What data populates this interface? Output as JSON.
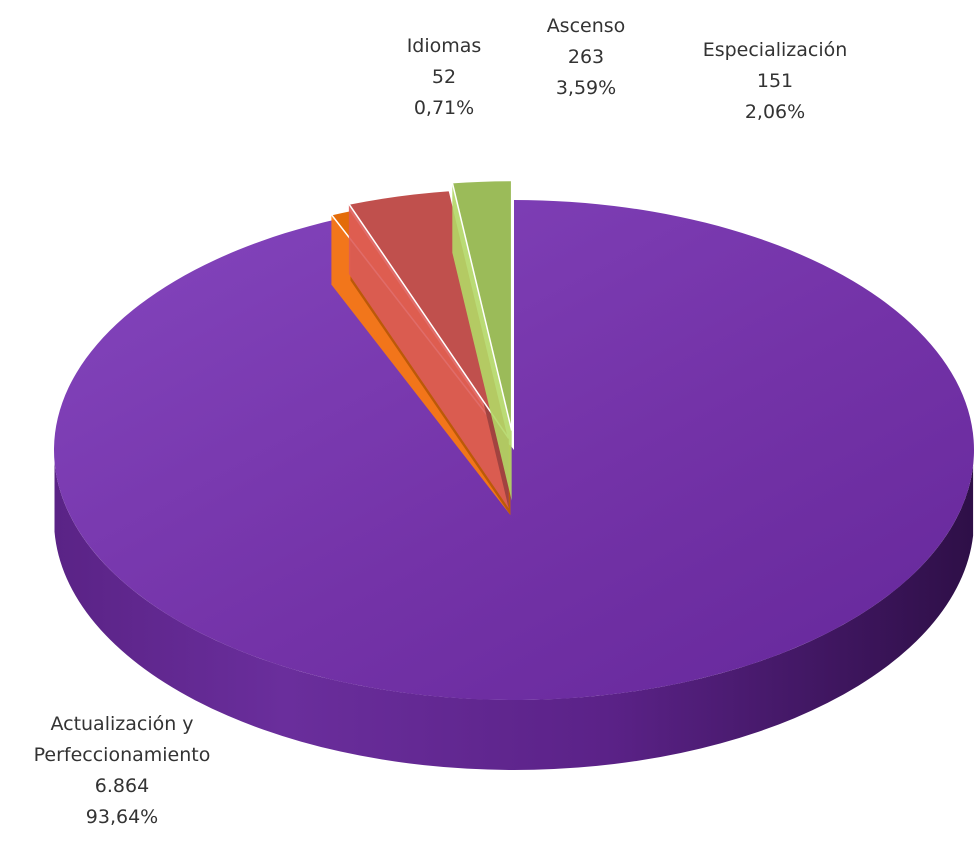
{
  "chart_data": {
    "type": "pie",
    "style": "3d-exploded",
    "slices": [
      {
        "name": "Actualización y Perfeccionamiento",
        "label_lines": [
          "Actualización y",
          "Perfeccionamiento"
        ],
        "value": 6864,
        "value_label": "6.864",
        "percent": 93.64,
        "percent_label": "93,64%",
        "color": "#7030A0"
      },
      {
        "name": "Idiomas",
        "label_lines": [
          "Idiomas"
        ],
        "value": 52,
        "value_label": "52",
        "percent": 0.71,
        "percent_label": "0,71%",
        "color": "#E36C09"
      },
      {
        "name": "Ascenso",
        "label_lines": [
          "Ascenso"
        ],
        "value": 263,
        "value_label": "263",
        "percent": 3.59,
        "percent_label": "3,59%",
        "color": "#C0504D"
      },
      {
        "name": "Especialización",
        "label_lines": [
          "Especialización"
        ],
        "value": 151,
        "value_label": "151",
        "percent": 2.06,
        "percent_label": "2,06%",
        "color": "#9BBB59"
      }
    ],
    "title": "",
    "legend": "none",
    "data_labels": "outside"
  }
}
